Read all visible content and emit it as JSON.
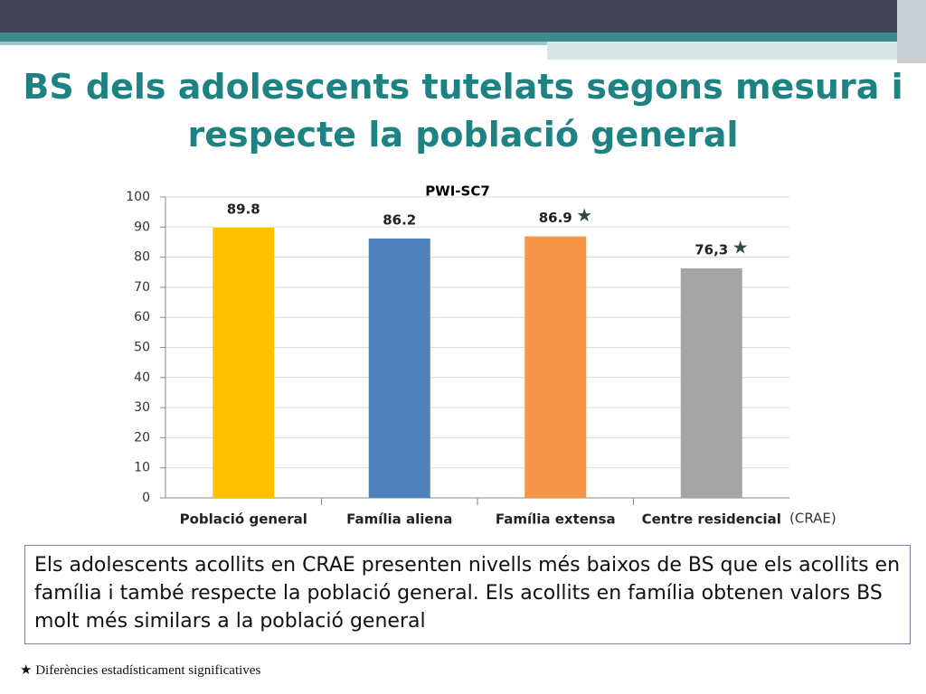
{
  "title": "BS dels adolescents tutelats segons mesura i respecte la població general",
  "chart_data": {
    "type": "bar",
    "title": "PWI-SC7",
    "categories": [
      "Població general",
      "Família aliena",
      "Família extensa",
      "Centre residencial"
    ],
    "values": [
      89.8,
      86.2,
      86.9,
      76.3
    ],
    "value_labels": [
      "89.8",
      "86.2",
      "86.9",
      "76,3"
    ],
    "colors": [
      "#ffc000",
      "#4f81bd",
      "#f79646",
      "#a5a5a5"
    ],
    "significant": [
      false,
      false,
      true,
      true
    ],
    "annotations": [
      "(CRAE)"
    ],
    "ylim": [
      0,
      100
    ],
    "yticks": [
      0,
      10,
      20,
      30,
      40,
      50,
      60,
      70,
      80,
      90,
      100
    ],
    "grid": true
  },
  "text_box": "Els adolescents acollits en CRAE presenten nivells més baixos de BS que els acollits en família i també respecte la població general. Els acollits en família obtenen valors BS molt més similars a la població general",
  "footnote": "Diferències estadísticament significatives"
}
